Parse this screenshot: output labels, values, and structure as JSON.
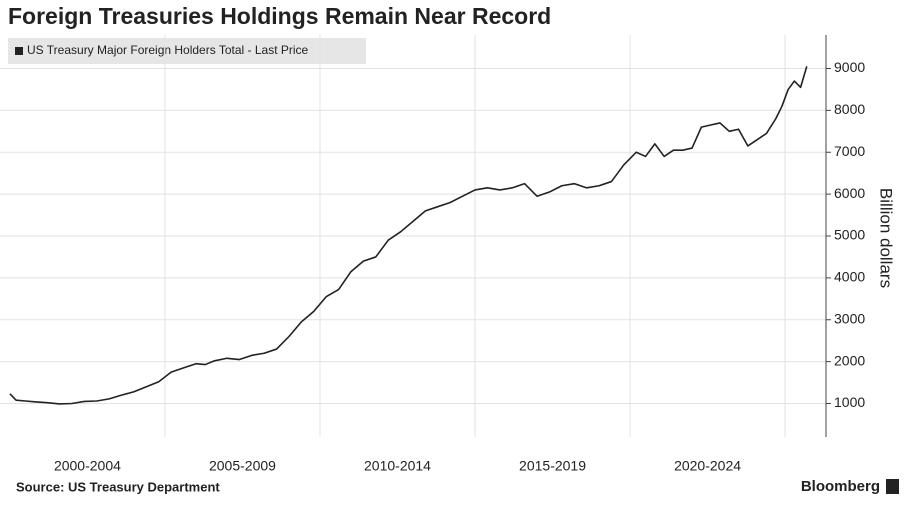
{
  "chart_data": {
    "type": "line",
    "title": "Foreign Treasuries Holdings Remain Near Record",
    "y_axis_label": "Billion dollars",
    "source": "Source: US Treasury Department",
    "brand": "Bloomberg",
    "y_axis_side": "right",
    "grid": true,
    "xlim": [
      1999.68,
      2026.32
    ],
    "ylim": [
      200,
      9800
    ],
    "yticks": [
      1000,
      2000,
      3000,
      4000,
      5000,
      6000,
      7000,
      8000,
      9000
    ],
    "xticks": [
      {
        "value": 2002.5,
        "label": "2000-2004"
      },
      {
        "value": 2007.5,
        "label": "2005-2009"
      },
      {
        "value": 2012.5,
        "label": "2010-2014"
      },
      {
        "value": 2017.5,
        "label": "2015-2019"
      },
      {
        "value": 2022.5,
        "label": "2020-2024"
      }
    ],
    "xgrid": [
      2005,
      2010,
      2015,
      2020,
      2025
    ],
    "x": [
      2000.0,
      2000.2,
      2000.5,
      2000.8,
      2001.2,
      2001.6,
      2002.0,
      2002.4,
      2002.8,
      2003.2,
      2003.6,
      2004.0,
      2004.4,
      2004.8,
      2005.2,
      2005.6,
      2006.0,
      2006.3,
      2006.6,
      2007.0,
      2007.4,
      2007.8,
      2008.2,
      2008.6,
      2009.0,
      2009.4,
      2009.8,
      2010.2,
      2010.6,
      2011.0,
      2011.4,
      2011.8,
      2012.2,
      2012.6,
      2013.0,
      2013.4,
      2013.8,
      2014.2,
      2014.6,
      2015.0,
      2015.4,
      2015.8,
      2016.2,
      2016.6,
      2017.0,
      2017.4,
      2017.8,
      2018.2,
      2018.6,
      2019.0,
      2019.4,
      2019.8,
      2020.2,
      2020.5,
      2020.8,
      2021.1,
      2021.4,
      2021.7,
      2022.0,
      2022.3,
      2022.6,
      2022.9,
      2023.2,
      2023.5,
      2023.8,
      2024.1,
      2024.4,
      2024.7,
      2024.9,
      2025.1,
      2025.3,
      2025.5,
      2025.7
    ],
    "series": [
      {
        "name": "US Treasury Major Foreign Holders Total - Last Price",
        "color": "#222222",
        "values": [
          1230,
          1080,
          1060,
          1040,
          1020,
          990,
          1000,
          1050,
          1060,
          1110,
          1200,
          1280,
          1400,
          1520,
          1750,
          1850,
          1950,
          1930,
          2020,
          2080,
          2050,
          2150,
          2200,
          2300,
          2600,
          2950,
          3200,
          3550,
          3720,
          4150,
          4400,
          4500,
          4900,
          5100,
          5350,
          5600,
          5700,
          5800,
          5950,
          6100,
          6150,
          6100,
          6150,
          6250,
          5950,
          6050,
          6200,
          6250,
          6150,
          6200,
          6300,
          6700,
          7000,
          6900,
          7200,
          6900,
          7050,
          7050,
          7100,
          7600,
          7650,
          7700,
          7500,
          7550,
          7150,
          7300,
          7450,
          7800,
          8100,
          8500,
          8700,
          8550,
          9050
        ]
      }
    ]
  }
}
